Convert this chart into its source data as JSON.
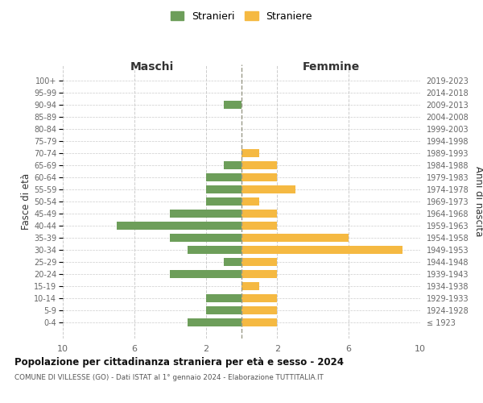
{
  "age_groups": [
    "100+",
    "95-99",
    "90-94",
    "85-89",
    "80-84",
    "75-79",
    "70-74",
    "65-69",
    "60-64",
    "55-59",
    "50-54",
    "45-49",
    "40-44",
    "35-39",
    "30-34",
    "25-29",
    "20-24",
    "15-19",
    "10-14",
    "5-9",
    "0-4"
  ],
  "birth_years": [
    "≤ 1923",
    "1924-1928",
    "1929-1933",
    "1934-1938",
    "1939-1943",
    "1944-1948",
    "1949-1953",
    "1954-1958",
    "1959-1963",
    "1964-1968",
    "1969-1973",
    "1974-1978",
    "1979-1983",
    "1984-1988",
    "1989-1993",
    "1994-1998",
    "1999-2003",
    "2004-2008",
    "2009-2013",
    "2014-2018",
    "2019-2023"
  ],
  "maschi": [
    0,
    0,
    1,
    0,
    0,
    0,
    0,
    1,
    2,
    2,
    2,
    4,
    7,
    4,
    3,
    1,
    4,
    0,
    2,
    2,
    3
  ],
  "femmine": [
    0,
    0,
    0,
    0,
    0,
    0,
    1,
    2,
    2,
    3,
    1,
    2,
    2,
    6,
    9,
    2,
    2,
    1,
    2,
    2,
    2
  ],
  "color_maschi": "#6d9e5a",
  "color_femmine": "#f5b942",
  "background_color": "#ffffff",
  "grid_color": "#cccccc",
  "title": "Popolazione per cittadinanza straniera per età e sesso - 2024",
  "subtitle": "COMUNE DI VILLESSE (GO) - Dati ISTAT al 1° gennaio 2024 - Elaborazione TUTTITALIA.IT",
  "xlabel_left": "Maschi",
  "xlabel_right": "Femmine",
  "ylabel_left": "Fasce di età",
  "ylabel_right": "Anni di nascita",
  "legend_maschi": "Stranieri",
  "legend_femmine": "Straniere",
  "xlim": 10,
  "xtick_positions": [
    -10,
    -6,
    -2,
    2,
    6,
    10
  ],
  "xtick_labels": [
    "10",
    "6",
    "2",
    "2",
    "6",
    "10"
  ]
}
